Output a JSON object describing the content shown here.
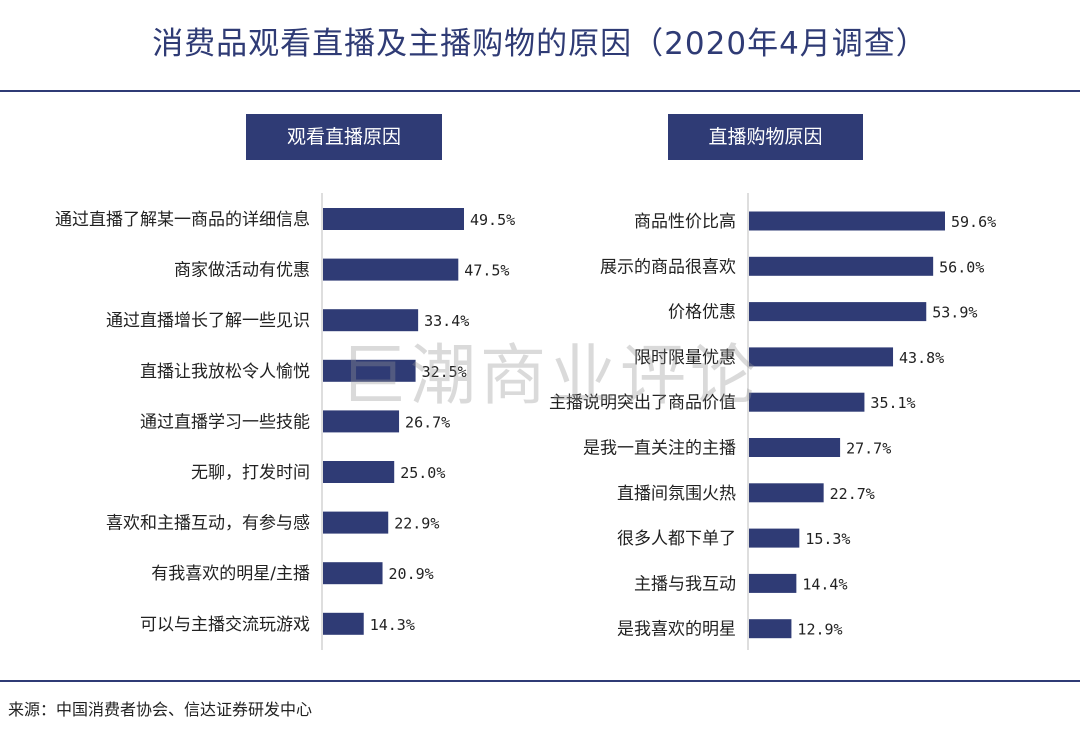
{
  "title": "消费品观看直播及主播购物的原因（2020年4月调查）",
  "source": "来源：中国消费者协会、信达证券研发中心",
  "watermark": "巨潮商业评论",
  "colors": {
    "bar": "#2f3b75",
    "text": "#222222",
    "title": "#2f3b75",
    "axis": "#c8c8c8"
  },
  "chart_data": [
    {
      "type": "bar",
      "orientation": "horizontal",
      "title": "观看直播原因",
      "unit": "%",
      "categories": [
        "通过直播了解某一商品的详细信息",
        "商家做活动有优惠",
        "通过直播增长了解一些见识",
        "直播让我放松令人愉悦",
        "通过直播学习一些技能",
        "无聊，打发时间",
        "喜欢和主播互动，有参与感",
        "有我喜欢的明星/主播",
        "可以与主播交流玩游戏"
      ],
      "values": [
        49.5,
        47.5,
        33.4,
        32.5,
        26.7,
        25.0,
        22.9,
        20.9,
        14.3
      ],
      "labels": [
        "49.5%",
        "47.5%",
        "33.4%",
        "32.5%",
        "26.7%",
        "25.0%",
        "22.9%",
        "20.9%",
        "14.3%"
      ]
    },
    {
      "type": "bar",
      "orientation": "horizontal",
      "title": "直播购物原因",
      "unit": "%",
      "categories": [
        "商品性价比高",
        "展示的商品很喜欢",
        "价格优惠",
        "限时限量优惠",
        "主播说明突出了商品价值",
        "是我一直关注的主播",
        "直播间氛围火热",
        "很多人都下单了",
        "主播与我互动",
        "是我喜欢的明星"
      ],
      "values": [
        59.6,
        56.0,
        53.9,
        43.8,
        35.1,
        27.7,
        22.7,
        15.3,
        14.4,
        12.9
      ],
      "labels": [
        "59.6%",
        "56.0%",
        "53.9%",
        "43.8%",
        "35.1%",
        "27.7%",
        "22.7%",
        "15.3%",
        "14.4%",
        "12.9%"
      ]
    }
  ]
}
